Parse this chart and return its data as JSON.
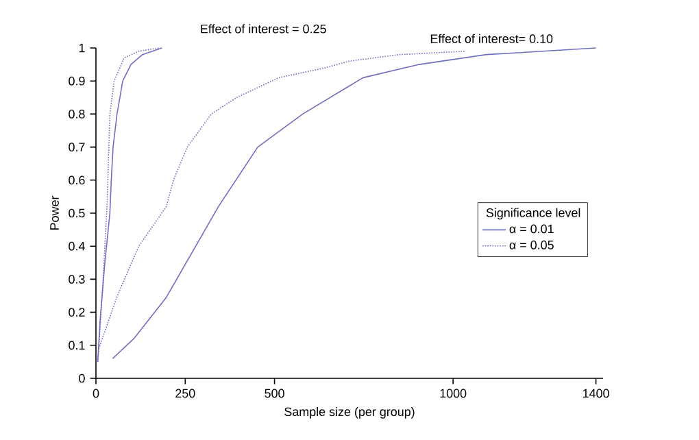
{
  "chart_data": {
    "type": "line",
    "xlabel": "Sample size (per group)",
    "ylabel": "Power",
    "legend_title": "Significance level",
    "legend": "right",
    "grid": false,
    "xlim": [
      0,
      1420
    ],
    "xticks": [
      0,
      250,
      500,
      1000,
      1400
    ],
    "ylim": [
      0,
      1
    ],
    "yticks": [
      0,
      0.1,
      0.2,
      0.3,
      0.4,
      0.5,
      0.6,
      0.7,
      0.8,
      0.9,
      1
    ],
    "annotations": [
      "Effect of interest = 0.25",
      "Effect of interest= 0.10"
    ],
    "series": [
      {
        "name": "α = 0.01",
        "color": "#6f6fbf",
        "line_style": "solid",
        "x": [
          47,
          106,
          197,
          343,
          453,
          579,
          748,
          905,
          1093,
          1250,
          1400
        ],
        "values": [
          0.06,
          0.12,
          0.245,
          0.52,
          0.7,
          0.8,
          0.91,
          0.95,
          0.98,
          0.99,
          1.0
        ]
      },
      {
        "name": "α = 0.05",
        "color": "#6f6fbf",
        "line_style": "dotted",
        "x": [
          8,
          60,
          120,
          197,
          217,
          256,
          323,
          394,
          512,
          642,
          709,
          850,
          1032
        ],
        "values": [
          0.09,
          0.25,
          0.4,
          0.52,
          0.6,
          0.7,
          0.8,
          0.85,
          0.91,
          0.94,
          0.96,
          0.98,
          0.99
        ]
      },
      {
        "color": "#6f6fbf",
        "line_style": "solid",
        "x": [
          5,
          12,
          25,
          39,
          43,
          48,
          59,
          75,
          98,
          130,
          185
        ],
        "values": [
          0.05,
          0.18,
          0.35,
          0.5,
          0.6,
          0.7,
          0.8,
          0.9,
          0.95,
          0.98,
          1.0
        ]
      },
      {
        "color": "#6f6fbf",
        "line_style": "dotted",
        "x": [
          5,
          8,
          20,
          31,
          39,
          51,
          79,
          120,
          177
        ],
        "values": [
          0.05,
          0.09,
          0.3,
          0.52,
          0.8,
          0.9,
          0.97,
          0.99,
          1.0
        ]
      }
    ]
  }
}
